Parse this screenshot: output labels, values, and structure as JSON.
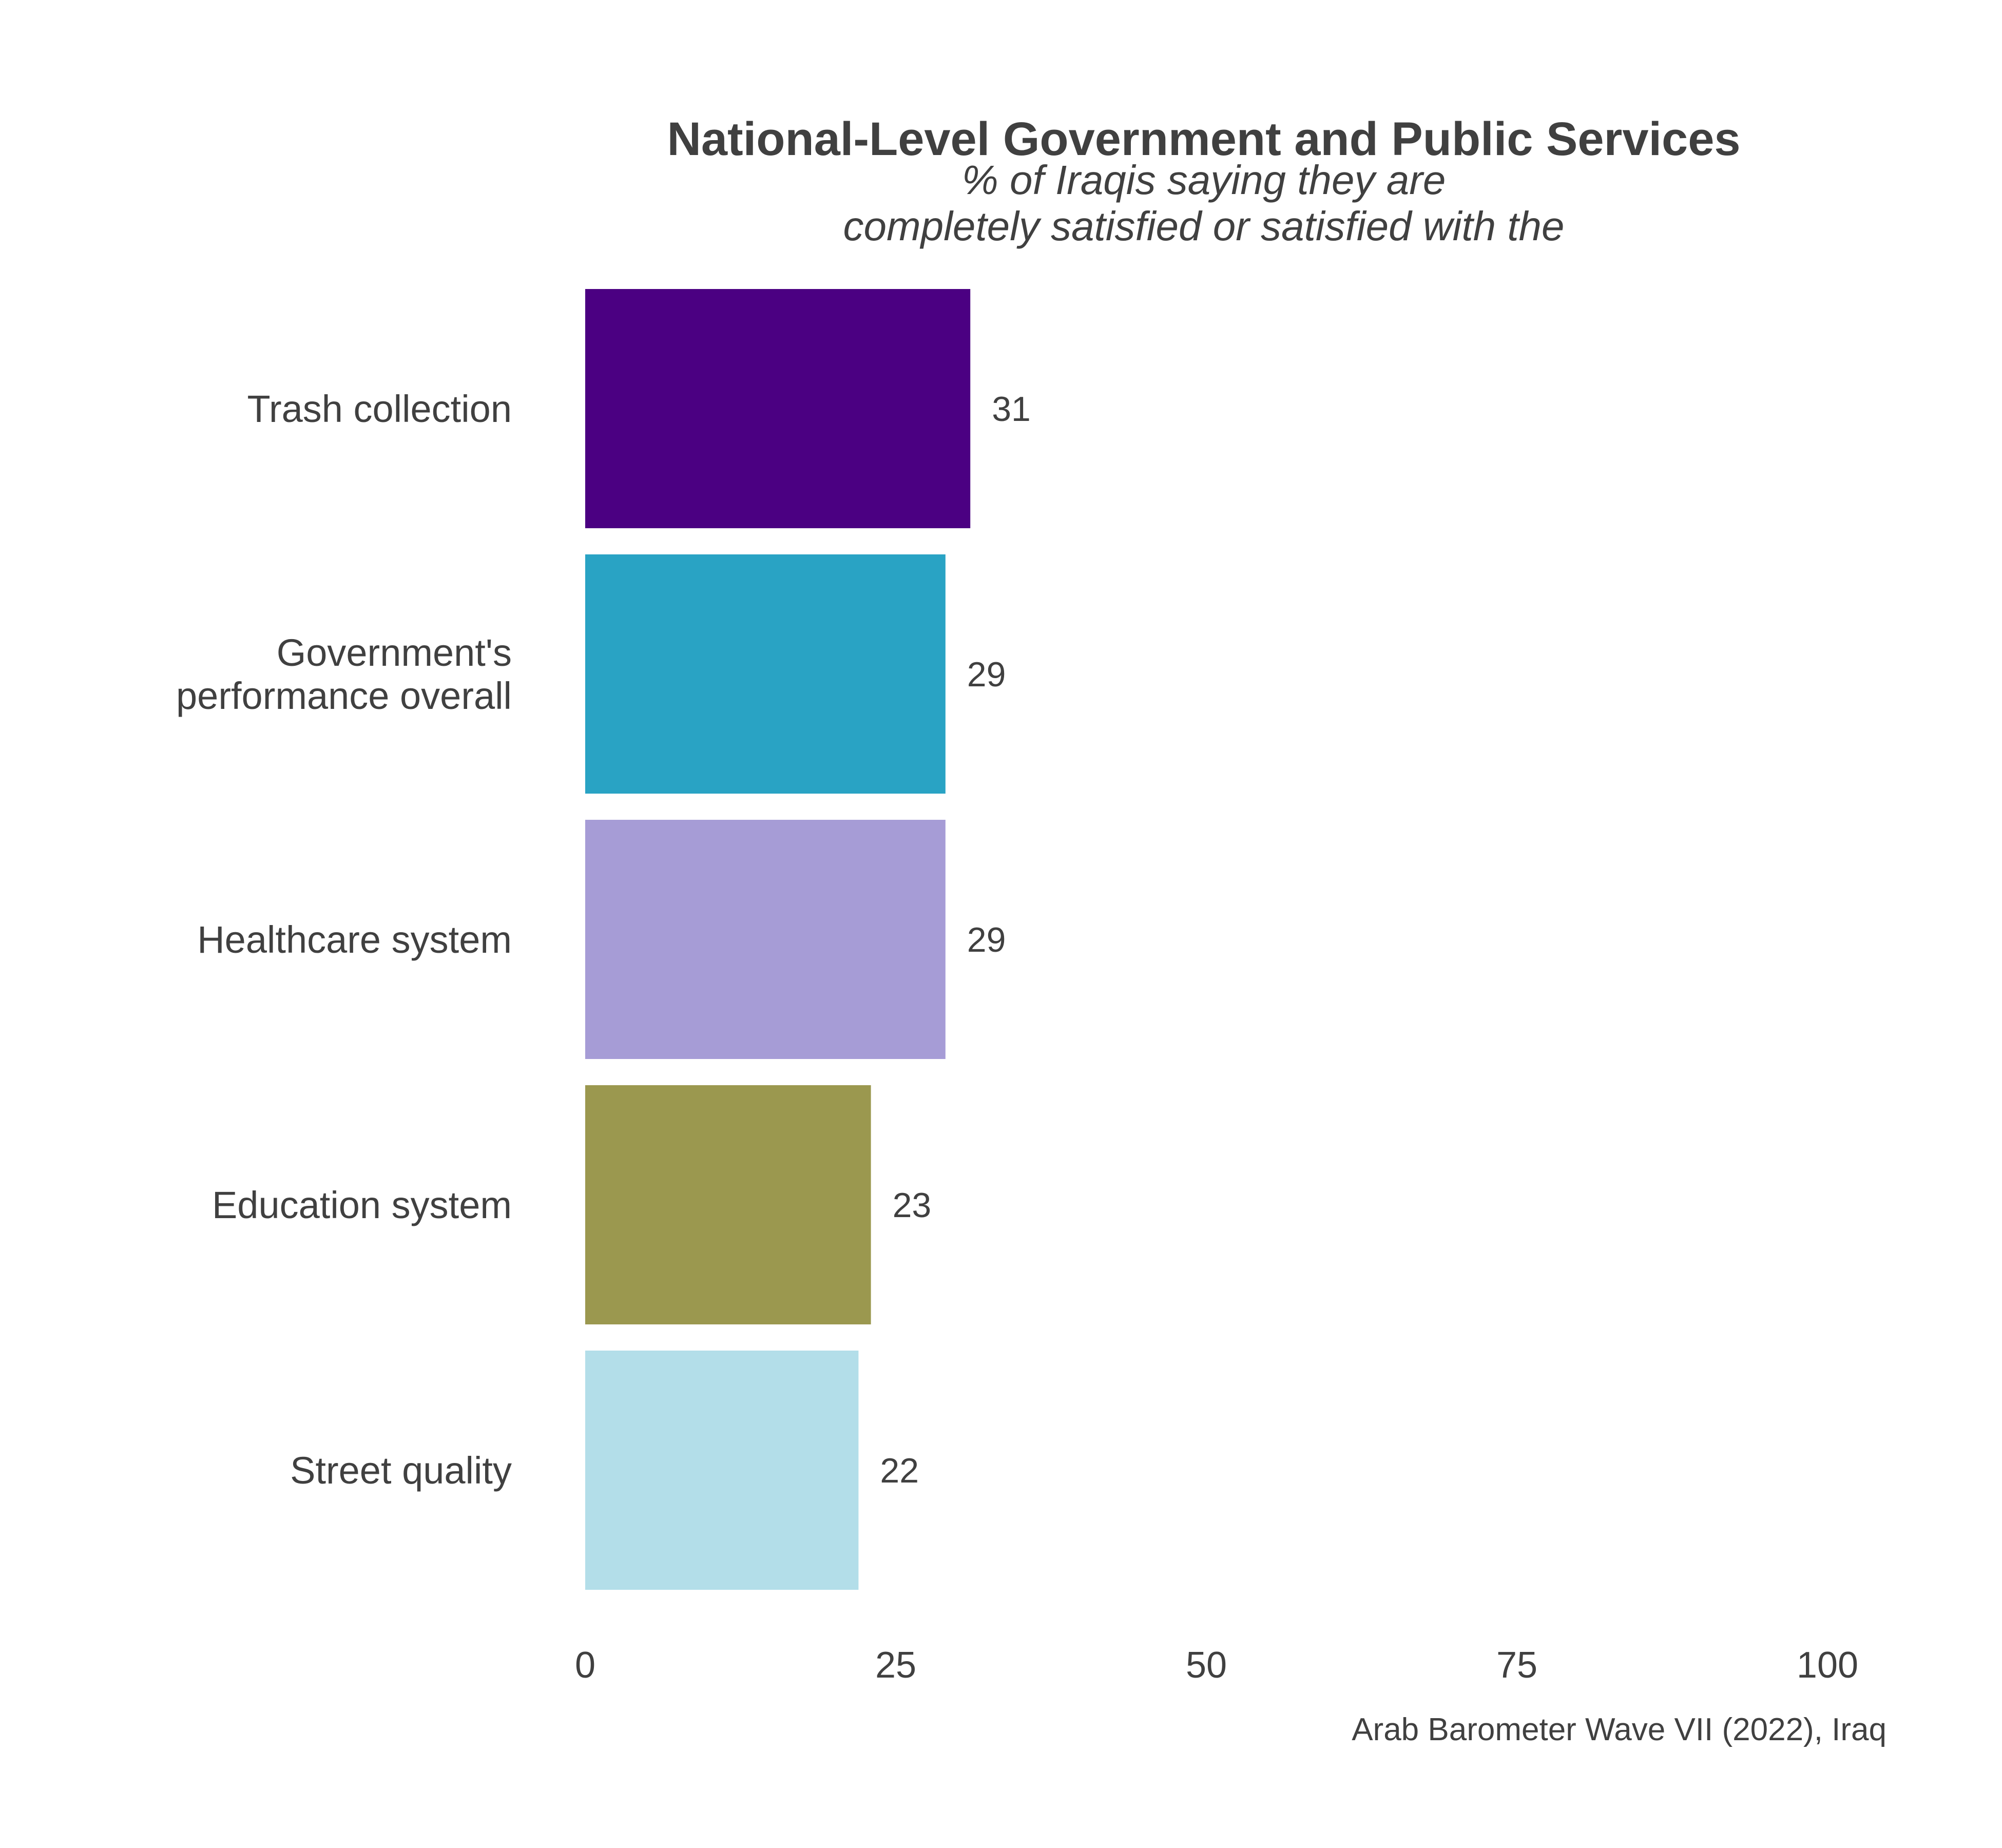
{
  "chart_data": {
    "type": "bar",
    "orientation": "horizontal",
    "title": "National-Level Government and Public Services",
    "subtitle_lines": [
      "% of Iraqis saying they are",
      "completely satisfied or satisfied with the"
    ],
    "categories": [
      "Trash collection",
      "Government's performance overall",
      "Healthcare system",
      "Education system",
      "Street quality"
    ],
    "category_label_lines": [
      [
        "Trash collection"
      ],
      [
        "Government's",
        "performance overall"
      ],
      [
        "Healthcare system"
      ],
      [
        "Education system"
      ],
      [
        "Street quality"
      ]
    ],
    "values": [
      31,
      29,
      29,
      23,
      22
    ],
    "value_labels": [
      "31",
      "29",
      "29",
      "23",
      "22"
    ],
    "colors": [
      "#4b0082",
      "#29a3c4",
      "#a69cd6",
      "#9b984f",
      "#b3dee9"
    ],
    "xlim": [
      0,
      100
    ],
    "xticks": [
      0,
      25,
      50,
      75,
      100
    ],
    "xtick_labels": [
      "0",
      "25",
      "50",
      "75",
      "100"
    ],
    "xlabel": "",
    "ylabel": "",
    "grid": false,
    "legend": "none",
    "caption": "Arab Barometer Wave VII (2022), Iraq"
  }
}
